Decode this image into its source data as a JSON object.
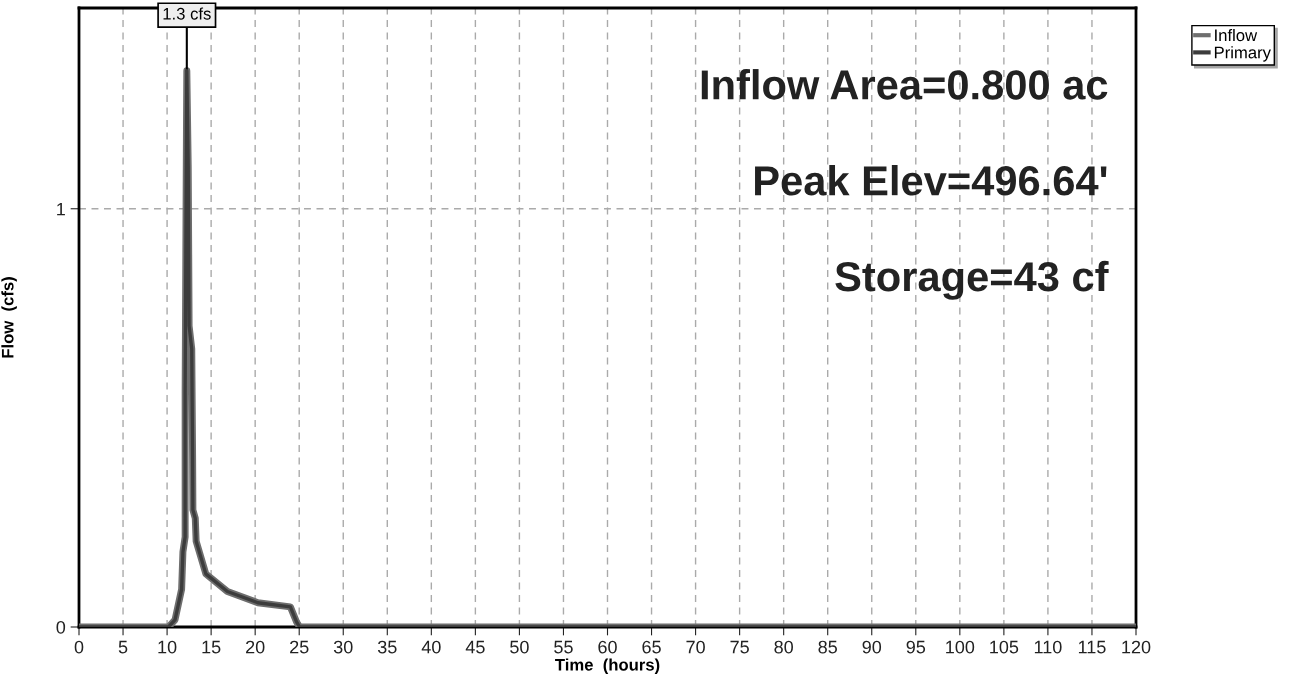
{
  "chart_data": {
    "type": "line",
    "xlabel": "Time  (hours)",
    "ylabel": "Flow  (cfs)",
    "x": [
      0,
      10.16,
      10.9,
      11.65,
      11.8,
      12.05,
      12.05,
      12.2,
      12.24,
      12.4,
      12.5,
      12.8,
      12.9,
      12.93,
      13.2,
      13.3,
      14.4,
      16.85,
      20.3,
      24.0,
      24.7,
      25.05,
      120
    ],
    "series": [
      {
        "name": "Inflow",
        "color": "#6e6e6e",
        "values": [
          0,
          0,
          0.017,
          0.09,
          0.18,
          0.215,
          0.56,
          1.19,
          1.33,
          1.1,
          0.72,
          0.665,
          0.4,
          0.28,
          0.26,
          0.205,
          0.127,
          0.085,
          0.058,
          0.048,
          0.012,
          0,
          0
        ]
      },
      {
        "name": "Primary",
        "color": "#3c3c3c",
        "values": [
          0,
          0,
          0.017,
          0.09,
          0.18,
          0.215,
          0.56,
          1.19,
          1.33,
          1.1,
          0.72,
          0.665,
          0.4,
          0.28,
          0.26,
          0.205,
          0.127,
          0.085,
          0.058,
          0.048,
          0.012,
          0,
          0
        ]
      }
    ],
    "xlim": [
      0,
      120
    ],
    "xticks": [
      0,
      5,
      10,
      15,
      20,
      25,
      30,
      35,
      40,
      45,
      50,
      55,
      60,
      65,
      70,
      75,
      80,
      85,
      90,
      95,
      100,
      105,
      110,
      115,
      120
    ],
    "ylim": [
      0,
      1.48
    ],
    "yticks": [
      0,
      1
    ],
    "grid": true,
    "legend": "top right",
    "marker": "none",
    "line_style": "solid",
    "annotations": [
      {
        "text": "1.3 cfs",
        "x": 12.24,
        "y": 1.33
      },
      "Inflow Area=0.800 ac",
      "Peak Elev=496.64'",
      "Storage=43 cf"
    ]
  }
}
